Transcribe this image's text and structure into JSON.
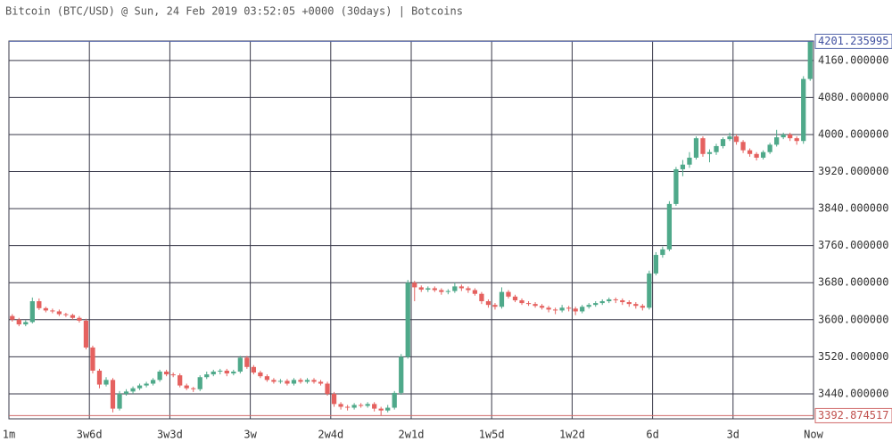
{
  "chart_data": {
    "type": "candlestick",
    "title": "Bitcoin (BTC/USD) @ Sun, 24 Feb 2019 03:52:05 +0000 (30days) | Botcoins",
    "up_color": "#4fa98a",
    "down_color": "#e5615f",
    "grid": true,
    "xlim": [
      -30,
      0
    ],
    "xticks": [
      {
        "value": -30,
        "label": "1m"
      },
      {
        "value": -27,
        "label": "3w6d"
      },
      {
        "value": -24,
        "label": "3w3d"
      },
      {
        "value": -21,
        "label": "3w"
      },
      {
        "value": -18,
        "label": "2w4d"
      },
      {
        "value": -15,
        "label": "2w1d"
      },
      {
        "value": -12,
        "label": "1w5d"
      },
      {
        "value": -9,
        "label": "1w2d"
      },
      {
        "value": -6,
        "label": "6d"
      },
      {
        "value": -3,
        "label": "3d"
      },
      {
        "value": 0,
        "label": "Now"
      }
    ],
    "ylim": [
      3386,
      4202
    ],
    "yticks": [
      {
        "value": 3440,
        "label": "3440.000000"
      },
      {
        "value": 3520,
        "label": "3520.000000"
      },
      {
        "value": 3600,
        "label": "3600.000000"
      },
      {
        "value": 3680,
        "label": "3680.000000"
      },
      {
        "value": 3760,
        "label": "3760.000000"
      },
      {
        "value": 3840,
        "label": "3840.000000"
      },
      {
        "value": 3920,
        "label": "3920.000000"
      },
      {
        "value": 4000,
        "label": "4000.000000"
      },
      {
        "value": 4080,
        "label": "4080.000000"
      },
      {
        "value": 4160,
        "label": "4160.000000"
      }
    ],
    "last_price": 4201.235995,
    "min_price": 3392.874517,
    "candles": [
      [
        3608,
        3612,
        3596,
        3600
      ],
      [
        3600,
        3604,
        3586,
        3590
      ],
      [
        3590,
        3599,
        3586,
        3595
      ],
      [
        3595,
        3648,
        3592,
        3640
      ],
      [
        3640,
        3646,
        3621,
        3625
      ],
      [
        3625,
        3628,
        3616,
        3620
      ],
      [
        3620,
        3624,
        3614,
        3618
      ],
      [
        3618,
        3622,
        3608,
        3612
      ],
      [
        3612,
        3615,
        3606,
        3610
      ],
      [
        3610,
        3613,
        3600,
        3604
      ],
      [
        3604,
        3608,
        3594,
        3598
      ],
      [
        3598,
        3602,
        3536,
        3540
      ],
      [
        3540,
        3544,
        3484,
        3490
      ],
      [
        3490,
        3494,
        3452,
        3460
      ],
      [
        3460,
        3476,
        3456,
        3470
      ],
      [
        3470,
        3474,
        3400,
        3408
      ],
      [
        3408,
        3446,
        3404,
        3440
      ],
      [
        3440,
        3450,
        3436,
        3445
      ],
      [
        3445,
        3456,
        3440,
        3452
      ],
      [
        3452,
        3462,
        3448,
        3458
      ],
      [
        3458,
        3466,
        3454,
        3462
      ],
      [
        3462,
        3474,
        3458,
        3470
      ],
      [
        3470,
        3492,
        3466,
        3488
      ],
      [
        3488,
        3492,
        3478,
        3482
      ],
      [
        3482,
        3486,
        3476,
        3480
      ],
      [
        3480,
        3484,
        3454,
        3458
      ],
      [
        3458,
        3462,
        3448,
        3452
      ],
      [
        3452,
        3455,
        3444,
        3450
      ],
      [
        3450,
        3480,
        3446,
        3476
      ],
      [
        3476,
        3488,
        3472,
        3482
      ],
      [
        3482,
        3492,
        3478,
        3488
      ],
      [
        3488,
        3494,
        3482,
        3490
      ],
      [
        3490,
        3494,
        3478,
        3484
      ],
      [
        3484,
        3492,
        3480,
        3488
      ],
      [
        3488,
        3522,
        3484,
        3518
      ],
      [
        3518,
        3522,
        3494,
        3498
      ],
      [
        3498,
        3502,
        3482,
        3486
      ],
      [
        3486,
        3490,
        3474,
        3478
      ],
      [
        3478,
        3482,
        3466,
        3470
      ],
      [
        3470,
        3474,
        3462,
        3466
      ],
      [
        3466,
        3472,
        3462,
        3468
      ],
      [
        3468,
        3472,
        3458,
        3462
      ],
      [
        3462,
        3474,
        3458,
        3470
      ],
      [
        3470,
        3474,
        3462,
        3466
      ],
      [
        3466,
        3474,
        3462,
        3470
      ],
      [
        3470,
        3474,
        3462,
        3466
      ],
      [
        3466,
        3470,
        3458,
        3462
      ],
      [
        3462,
        3466,
        3436,
        3440
      ],
      [
        3440,
        3444,
        3412,
        3418
      ],
      [
        3418,
        3422,
        3406,
        3412
      ],
      [
        3412,
        3416,
        3404,
        3410
      ],
      [
        3410,
        3420,
        3406,
        3416
      ],
      [
        3416,
        3420,
        3410,
        3414
      ],
      [
        3414,
        3422,
        3410,
        3418
      ],
      [
        3418,
        3422,
        3402,
        3408
      ],
      [
        3408,
        3412,
        3393,
        3404
      ],
      [
        3404,
        3416,
        3400,
        3410
      ],
      [
        3410,
        3446,
        3406,
        3442
      ],
      [
        3442,
        3526,
        3438,
        3520
      ],
      [
        3520,
        3686,
        3516,
        3680
      ],
      [
        3680,
        3684,
        3640,
        3670
      ],
      [
        3670,
        3674,
        3660,
        3665
      ],
      [
        3665,
        3672,
        3660,
        3668
      ],
      [
        3668,
        3672,
        3660,
        3664
      ],
      [
        3664,
        3668,
        3654,
        3660
      ],
      [
        3660,
        3666,
        3655,
        3662
      ],
      [
        3662,
        3680,
        3658,
        3672
      ],
      [
        3672,
        3676,
        3662,
        3668
      ],
      [
        3668,
        3672,
        3658,
        3664
      ],
      [
        3664,
        3668,
        3652,
        3656
      ],
      [
        3656,
        3660,
        3634,
        3640
      ],
      [
        3640,
        3644,
        3626,
        3632
      ],
      [
        3632,
        3636,
        3622,
        3628
      ],
      [
        3628,
        3670,
        3624,
        3660
      ],
      [
        3660,
        3664,
        3646,
        3650
      ],
      [
        3650,
        3654,
        3638,
        3642
      ],
      [
        3642,
        3646,
        3632,
        3636
      ],
      [
        3636,
        3640,
        3630,
        3634
      ],
      [
        3634,
        3638,
        3626,
        3630
      ],
      [
        3630,
        3634,
        3622,
        3626
      ],
      [
        3626,
        3630,
        3616,
        3622
      ],
      [
        3622,
        3626,
        3612,
        3620
      ],
      [
        3620,
        3632,
        3616,
        3626
      ],
      [
        3626,
        3630,
        3618,
        3624
      ],
      [
        3624,
        3628,
        3610,
        3618
      ],
      [
        3618,
        3632,
        3614,
        3628
      ],
      [
        3628,
        3636,
        3624,
        3632
      ],
      [
        3632,
        3640,
        3628,
        3636
      ],
      [
        3636,
        3644,
        3632,
        3640
      ],
      [
        3640,
        3648,
        3636,
        3644
      ],
      [
        3644,
        3648,
        3636,
        3642
      ],
      [
        3642,
        3646,
        3632,
        3638
      ],
      [
        3638,
        3642,
        3628,
        3634
      ],
      [
        3634,
        3638,
        3624,
        3630
      ],
      [
        3630,
        3634,
        3620,
        3626
      ],
      [
        3626,
        3706,
        3622,
        3700
      ],
      [
        3700,
        3746,
        3696,
        3740
      ],
      [
        3740,
        3758,
        3734,
        3752
      ],
      [
        3752,
        3856,
        3748,
        3850
      ],
      [
        3850,
        3930,
        3846,
        3925
      ],
      [
        3925,
        3945,
        3910,
        3935
      ],
      [
        3935,
        3962,
        3928,
        3950
      ],
      [
        3950,
        3996,
        3946,
        3992
      ],
      [
        3992,
        3996,
        3952,
        3958
      ],
      [
        3958,
        3968,
        3940,
        3962
      ],
      [
        3962,
        3980,
        3956,
        3975
      ],
      [
        3975,
        3994,
        3970,
        3990
      ],
      [
        3990,
        4004,
        3986,
        3996
      ],
      [
        3996,
        4000,
        3978,
        3984
      ],
      [
        3984,
        3988,
        3960,
        3966
      ],
      [
        3966,
        3970,
        3952,
        3958
      ],
      [
        3958,
        3962,
        3944,
        3950
      ],
      [
        3950,
        3966,
        3946,
        3962
      ],
      [
        3962,
        3982,
        3958,
        3978
      ],
      [
        3978,
        4010,
        3974,
        3994
      ],
      [
        3994,
        4004,
        3990,
        4000
      ],
      [
        4000,
        4004,
        3986,
        3992
      ],
      [
        3992,
        3996,
        3978,
        3986
      ],
      [
        3986,
        4126,
        3980,
        4120
      ],
      [
        4120,
        4201.235995,
        4116,
        4201.235995
      ]
    ]
  }
}
